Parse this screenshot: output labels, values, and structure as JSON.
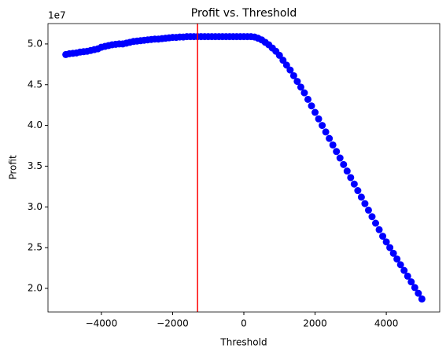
{
  "chart_data": {
    "type": "scatter",
    "title": "Profit vs. Threshold",
    "x_label": "Threshold",
    "y_label": "Profit",
    "y_offset_label": "1e7",
    "series": [
      {
        "color": "#0000ff",
        "x": [
          -5000,
          -4900,
          -4800,
          -4700,
          -4600,
          -4500,
          -4400,
          -4300,
          -4200,
          -4100,
          -4000,
          -3900,
          -3800,
          -3700,
          -3600,
          -3500,
          -3400,
          -3300,
          -3200,
          -3100,
          -3000,
          -2900,
          -2800,
          -2700,
          -2600,
          -2500,
          -2400,
          -2300,
          -2200,
          -2100,
          -2000,
          -1900,
          -1800,
          -1700,
          -1600,
          -1500,
          -1400,
          -1300,
          -1200,
          -1100,
          -1000,
          -900,
          -800,
          -700,
          -600,
          -500,
          -400,
          -300,
          -200,
          -100,
          0,
          100,
          200,
          300,
          400,
          500,
          600,
          700,
          800,
          900,
          1000,
          1100,
          1200,
          1300,
          1400,
          1500,
          1600,
          1700,
          1800,
          1900,
          2000,
          2100,
          2200,
          2300,
          2400,
          2500,
          2600,
          2700,
          2800,
          2900,
          3000,
          3100,
          3200,
          3300,
          3400,
          3500,
          3600,
          3700,
          3800,
          3900,
          4000,
          4100,
          4200,
          4300,
          4400,
          4500,
          4600,
          4700,
          4800,
          4900,
          5000
        ],
        "values": [
          4.87,
          4.88,
          4.885,
          4.89,
          4.9,
          4.905,
          4.91,
          4.92,
          4.93,
          4.94,
          4.96,
          4.97,
          4.98,
          4.99,
          4.995,
          5.0,
          5.0,
          5.01,
          5.02,
          5.03,
          5.035,
          5.04,
          5.045,
          5.05,
          5.055,
          5.06,
          5.06,
          5.065,
          5.07,
          5.075,
          5.08,
          5.08,
          5.085,
          5.085,
          5.09,
          5.09,
          5.09,
          5.09,
          5.09,
          5.09,
          5.09,
          5.09,
          5.09,
          5.09,
          5.09,
          5.09,
          5.09,
          5.09,
          5.09,
          5.09,
          5.09,
          5.09,
          5.09,
          5.085,
          5.07,
          5.05,
          5.02,
          4.99,
          4.95,
          4.91,
          4.86,
          4.8,
          4.74,
          4.68,
          4.61,
          4.54,
          4.47,
          4.4,
          4.32,
          4.24,
          4.16,
          4.08,
          4.0,
          3.92,
          3.84,
          3.76,
          3.68,
          3.6,
          3.52,
          3.44,
          3.36,
          3.28,
          3.2,
          3.12,
          3.04,
          2.96,
          2.88,
          2.8,
          2.72,
          2.64,
          2.57,
          2.5,
          2.43,
          2.36,
          2.29,
          2.22,
          2.15,
          2.08,
          2.01,
          1.94,
          1.87
        ]
      }
    ],
    "vline": {
      "x": -1300,
      "color": "#ff0000"
    },
    "xlim": [
      -5500,
      5500
    ],
    "xticks": [
      {
        "value": -4000,
        "label": "−4000"
      },
      {
        "value": -2000,
        "label": "−2000"
      },
      0,
      2000,
      4000
    ],
    "ylim": [
      1.71,
      5.25
    ],
    "yticks": [
      {
        "value": 2,
        "label": "2.0"
      },
      {
        "value": 2.5,
        "label": "2.5"
      },
      {
        "value": 3,
        "label": "3.0"
      },
      {
        "value": 3.5,
        "label": "3.5"
      },
      {
        "value": 4,
        "label": "4.0"
      },
      {
        "value": 4.5,
        "label": "4.5"
      },
      {
        "value": 5,
        "label": "5.0"
      }
    ]
  }
}
